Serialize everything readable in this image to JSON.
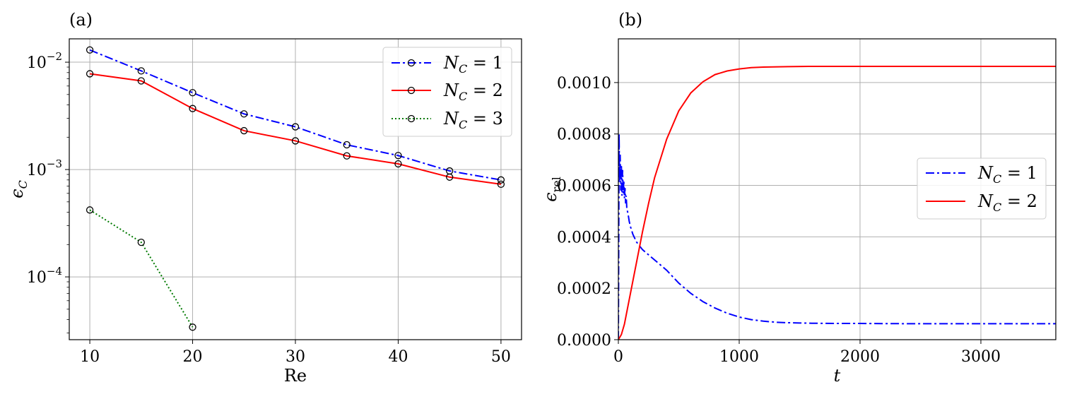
{
  "chart_data": [
    {
      "panel_label": "(a)",
      "type": "line",
      "xlabel": "Re",
      "ylabel": "ϵ_C",
      "ylabel_main": "ϵ",
      "ylabel_sub": "C",
      "xlim": [
        8,
        52
      ],
      "ylim": [
        2.6e-05,
        0.0165
      ],
      "yscale": "log",
      "xticks": [
        10,
        20,
        30,
        40,
        50
      ],
      "xtick_labels": [
        "10",
        "20",
        "30",
        "40",
        "50"
      ],
      "yticks": [
        0.0001,
        0.001,
        0.01
      ],
      "ytick_labels": [
        {
          "base": "10",
          "exp": "−4"
        },
        {
          "base": "10",
          "exp": "−3"
        },
        {
          "base": "10",
          "exp": "−2"
        }
      ],
      "grid": true,
      "legend_placement": "top-right",
      "series": [
        {
          "name": "N_C = 1",
          "legend_main": "N",
          "legend_sub": "C",
          "legend_rest": " = 1",
          "color": "#0000ff",
          "dash": "dashdot",
          "marker": "circle",
          "x": [
            10,
            15,
            20,
            25,
            30,
            35,
            40,
            45,
            50
          ],
          "y": [
            0.013,
            0.0083,
            0.0052,
            0.0033,
            0.0025,
            0.0017,
            0.00135,
            0.00097,
            0.0008
          ]
        },
        {
          "name": "N_C = 2",
          "legend_main": "N",
          "legend_sub": "C",
          "legend_rest": " = 2",
          "color": "#ff0000",
          "dash": "solid",
          "marker": "circle",
          "x": [
            10,
            15,
            20,
            25,
            30,
            35,
            40,
            45,
            50
          ],
          "y": [
            0.0078,
            0.0067,
            0.0037,
            0.0023,
            0.00185,
            0.00134,
            0.00113,
            0.00085,
            0.00073
          ]
        },
        {
          "name": "N_C = 3",
          "legend_main": "N",
          "legend_sub": "C",
          "legend_rest": " = 3",
          "color": "#007a00",
          "dash": "dotted",
          "marker": "circle",
          "x": [
            10,
            15,
            20
          ],
          "y": [
            0.00042,
            0.00021,
            3.4e-05
          ]
        }
      ]
    },
    {
      "panel_label": "(b)",
      "type": "line",
      "xlabel": "t",
      "ylabel": "ϵ_rel",
      "ylabel_main": "ϵ",
      "ylabel_sub": "rel",
      "xlim": [
        0,
        3620
      ],
      "ylim": [
        0,
        0.00117
      ],
      "yscale": "linear",
      "xticks": [
        0,
        1000,
        2000,
        3000
      ],
      "xtick_labels": [
        "0",
        "1000",
        "2000",
        "3000"
      ],
      "yticks": [
        0.0,
        0.0002,
        0.0004,
        0.0006,
        0.0008,
        0.001
      ],
      "ytick_labels": [
        "0.0000",
        "0.0002",
        "0.0004",
        "0.0006",
        "0.0008",
        "0.0010"
      ],
      "grid": true,
      "legend_placement": "center-right",
      "series": [
        {
          "name": "N_C = 1",
          "legend_main": "N",
          "legend_sub": "C",
          "legend_rest": " = 1",
          "color": "#0000ff",
          "dash": "dashdot",
          "x": [
            0,
            3,
            6,
            10,
            15,
            20,
            25,
            30,
            35,
            40,
            45,
            50,
            55,
            60,
            65,
            70,
            80,
            90,
            100,
            120,
            150,
            200,
            300,
            400,
            500,
            600,
            700,
            800,
            900,
            1000,
            1100,
            1200,
            1300,
            1400,
            1500,
            1600,
            1800,
            2000,
            2500,
            3000,
            3620
          ],
          "y": [
            0.0,
            0.00035,
            0.0008,
            0.00062,
            0.00072,
            0.00058,
            0.00068,
            0.00056,
            0.00066,
            0.00057,
            0.00062,
            0.00055,
            0.00059,
            0.00053,
            0.00056,
            0.00051,
            0.00049,
            0.00046,
            0.00044,
            0.00041,
            0.00038,
            0.00035,
            0.00031,
            0.00027,
            0.00022,
            0.00018,
            0.000148,
            0.000123,
            0.000103,
            8.8e-05,
            7.8e-05,
            7.2e-05,
            6.8e-05,
            6.6e-05,
            6.5e-05,
            6.4e-05,
            6.3e-05,
            6.3e-05,
            6.2e-05,
            6.2e-05,
            6.2e-05
          ]
        },
        {
          "name": "N_C = 2",
          "legend_main": "N",
          "legend_sub": "C",
          "legend_rest": " = 2",
          "color": "#ff0000",
          "dash": "solid",
          "x": [
            0,
            25,
            50,
            75,
            100,
            150,
            200,
            250,
            300,
            400,
            500,
            600,
            700,
            800,
            900,
            1000,
            1100,
            1200,
            1400,
            1600,
            1800,
            2000,
            2500,
            3000,
            3620
          ],
          "y": [
            0.0,
            2e-05,
            6e-05,
            0.00012,
            0.00018,
            0.0003,
            0.00042,
            0.00053,
            0.00063,
            0.00078,
            0.00089,
            0.00096,
            0.001003,
            0.001031,
            0.001045,
            0.001053,
            0.001058,
            0.00106,
            0.001062,
            0.001063,
            0.001063,
            0.001063,
            0.001063,
            0.001063,
            0.001063
          ]
        }
      ]
    }
  ]
}
